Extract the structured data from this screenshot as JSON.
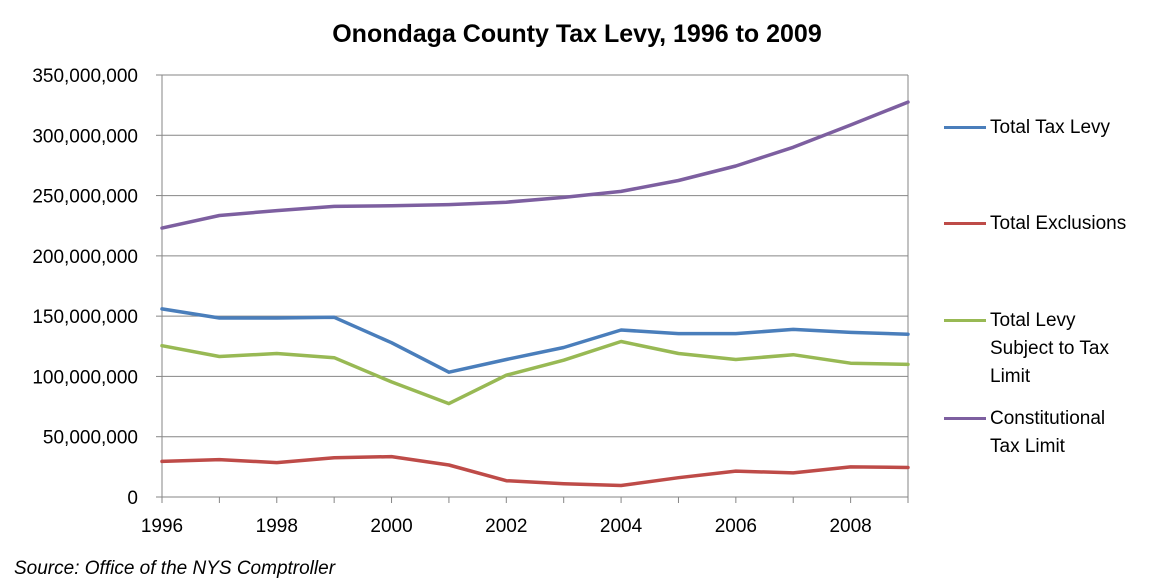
{
  "chart_data": {
    "type": "line",
    "title": "Onondaga County Tax Levy, 1996 to 2009",
    "xlabel": "",
    "ylabel": "",
    "x": [
      1996,
      1997,
      1998,
      1999,
      2000,
      2001,
      2002,
      2003,
      2004,
      2005,
      2006,
      2007,
      2008,
      2009
    ],
    "xlim": [
      1996,
      2009
    ],
    "xticks": [
      "1996",
      "1998",
      "2000",
      "2002",
      "2004",
      "2006",
      "2008"
    ],
    "ylim": [
      0,
      350000000
    ],
    "yticks": [
      "0",
      "50,000,000",
      "100,000,000",
      "150,000,000",
      "200,000,000",
      "250,000,000",
      "300,000,000",
      "350,000,000"
    ],
    "grid": true,
    "legend_position": "right",
    "series": [
      {
        "name": "Total Tax Levy",
        "color": "#4A7EBB",
        "values": [
          156000000,
          148500000,
          148500000,
          149000000,
          128000000,
          103500000,
          114000000,
          124000000,
          138500000,
          135500000,
          135500000,
          139000000,
          136500000,
          135000000
        ]
      },
      {
        "name": "Total Exclusions",
        "color": "#BE4B48",
        "values": [
          29500000,
          31000000,
          28500000,
          32500000,
          33500000,
          26500000,
          13500000,
          11000000,
          9500000,
          16000000,
          21500000,
          20000000,
          25000000,
          24500000
        ]
      },
      {
        "name": "Total Levy Subject to Tax Limit",
        "color": "#98B954",
        "values": [
          125500000,
          116500000,
          119000000,
          115500000,
          95500000,
          77500000,
          101000000,
          113500000,
          129000000,
          119000000,
          114000000,
          118000000,
          111000000,
          110000000
        ]
      },
      {
        "name": "Constitutional Tax Limit",
        "color": "#7D5FA0",
        "values": [
          223000000,
          233500000,
          237500000,
          241000000,
          241500000,
          242500000,
          244500000,
          248500000,
          253500000,
          262500000,
          274500000,
          290000000,
          308500000,
          327500000
        ]
      }
    ]
  },
  "legend": {
    "items": [
      {
        "label_lines": [
          "Total Tax Levy"
        ],
        "color": "#4A7EBB"
      },
      {
        "label_lines": [
          "Total Exclusions"
        ],
        "color": "#BE4B48"
      },
      {
        "label_lines": [
          "Total Levy",
          "Subject to Tax",
          "Limit"
        ],
        "color": "#98B954"
      },
      {
        "label_lines": [
          "Constitutional",
          "Tax Limit"
        ],
        "color": "#7D5FA0"
      }
    ]
  },
  "source_note": "Source:  Office of the NYS Comptroller"
}
